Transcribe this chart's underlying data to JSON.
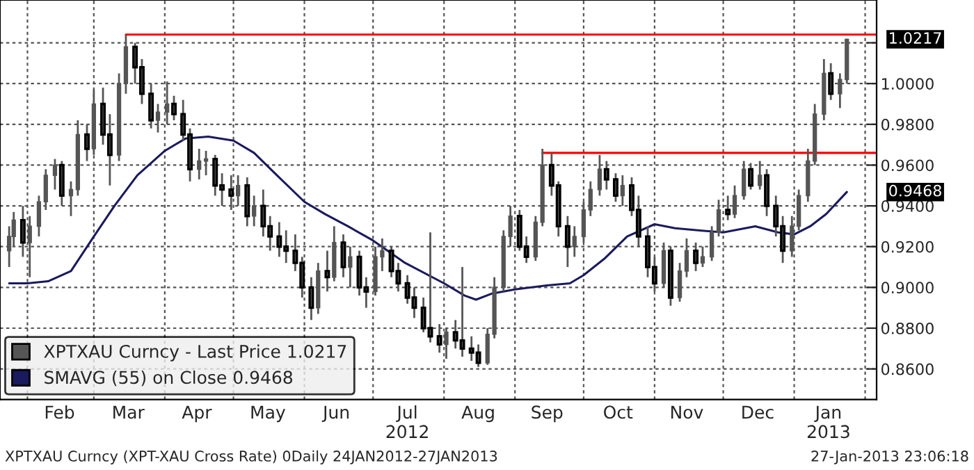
{
  "chart_data": {
    "type": "candlestick",
    "xlim": [
      "2012-01-20",
      "2013-02-06"
    ],
    "ylim": [
      0.845,
      1.041
    ],
    "yticks": [
      {
        "value": 0.86,
        "label": "0.8600"
      },
      {
        "value": 0.88,
        "label": "0.8800"
      },
      {
        "value": 0.9,
        "label": "0.9000"
      },
      {
        "value": 0.92,
        "label": "0.9200"
      },
      {
        "value": 0.94,
        "label": "0.9400"
      },
      {
        "value": 0.96,
        "label": "0.9600"
      },
      {
        "value": 0.98,
        "label": "0.9800"
      },
      {
        "value": 1.0,
        "label": "1.0000"
      },
      {
        "value": 1.02,
        "label": null
      }
    ],
    "xticks": [
      {
        "value": "2012-02-01",
        "label": null
      },
      {
        "value": "2012-03-01",
        "label": null
      },
      {
        "value": "2012-04-01",
        "label": null
      },
      {
        "value": "2012-05-01",
        "label": null
      },
      {
        "value": "2012-06-01",
        "label": null
      },
      {
        "value": "2012-07-01",
        "label": null
      },
      {
        "value": "2012-08-01",
        "label": null
      },
      {
        "value": "2012-09-01",
        "label": null
      },
      {
        "value": "2012-10-01",
        "label": null
      },
      {
        "value": "2012-11-01",
        "label": null
      },
      {
        "value": "2012-12-01",
        "label": null
      },
      {
        "value": "2013-01-01",
        "label": null
      },
      {
        "value": "2013-02-01",
        "label": null
      },
      {
        "value": "2012-02-15",
        "label": "Feb"
      },
      {
        "value": "2012-03-16",
        "label": "Mar"
      },
      {
        "value": "2012-04-15",
        "label": "Apr"
      },
      {
        "value": "2012-05-16",
        "label": "May"
      },
      {
        "value": "2012-06-15",
        "label": "Jun"
      },
      {
        "value": "2012-07-16",
        "label": "Jul\n2012"
      },
      {
        "value": "2012-08-16",
        "label": "Aug"
      },
      {
        "value": "2012-09-15",
        "label": "Sep"
      },
      {
        "value": "2012-10-16",
        "label": "Oct"
      },
      {
        "value": "2012-11-15",
        "label": "Nov"
      },
      {
        "value": "2012-12-16",
        "label": "Dec"
      },
      {
        "value": "2013-01-16",
        "label": "Jan\n2013"
      }
    ],
    "grid": true,
    "legend": "bottom left",
    "series": [
      {
        "name": "XPTXAU Curncy - Last Price 1.0217",
        "color": "#555555",
        "x": [
          "2012-01-24",
          "2012-01-26",
          "2012-01-30",
          "2012-02-02",
          "2012-02-06",
          "2012-02-09",
          "2012-02-13",
          "2012-02-16",
          "2012-02-20",
          "2012-02-23",
          "2012-02-27",
          "2012-03-01",
          "2012-03-05",
          "2012-03-08",
          "2012-03-12",
          "2012-03-15",
          "2012-03-19",
          "2012-03-22",
          "2012-03-26",
          "2012-03-29",
          "2012-04-02",
          "2012-04-05",
          "2012-04-09",
          "2012-04-12",
          "2012-04-16",
          "2012-04-19",
          "2012-04-23",
          "2012-04-26",
          "2012-04-30",
          "2012-05-03",
          "2012-05-07",
          "2012-05-10",
          "2012-05-14",
          "2012-05-17",
          "2012-05-21",
          "2012-05-24",
          "2012-05-28",
          "2012-05-31",
          "2012-06-04",
          "2012-06-07",
          "2012-06-11",
          "2012-06-14",
          "2012-06-18",
          "2012-06-21",
          "2012-06-25",
          "2012-06-28",
          "2012-07-02",
          "2012-07-05",
          "2012-07-09",
          "2012-07-12",
          "2012-07-16",
          "2012-07-19",
          "2012-07-23",
          "2012-07-26",
          "2012-07-30",
          "2012-08-02",
          "2012-08-06",
          "2012-08-09",
          "2012-08-13",
          "2012-08-16",
          "2012-08-20",
          "2012-08-23",
          "2012-08-27",
          "2012-08-30",
          "2012-09-03",
          "2012-09-06",
          "2012-09-10",
          "2012-09-13",
          "2012-09-17",
          "2012-09-20",
          "2012-09-24",
          "2012-09-27",
          "2012-10-01",
          "2012-10-04",
          "2012-10-08",
          "2012-10-11",
          "2012-10-15",
          "2012-10-18",
          "2012-10-22",
          "2012-10-25",
          "2012-10-29",
          "2012-11-01",
          "2012-11-05",
          "2012-11-08",
          "2012-11-12",
          "2012-11-15",
          "2012-11-19",
          "2012-11-22",
          "2012-11-26",
          "2012-11-29",
          "2012-12-03",
          "2012-12-06",
          "2012-12-10",
          "2012-12-13",
          "2012-12-17",
          "2012-12-20",
          "2012-12-24",
          "2012-12-27",
          "2012-12-31",
          "2013-01-03",
          "2013-01-07",
          "2013-01-10",
          "2013-01-14",
          "2013-01-17",
          "2013-01-21",
          "2013-01-24"
        ],
        "ohlc": [
          [
            0.918,
            0.93,
            0.91,
            0.925
          ],
          [
            0.925,
            0.937,
            0.92,
            0.933
          ],
          [
            0.933,
            0.94,
            0.915,
            0.922
          ],
          [
            0.922,
            0.935,
            0.905,
            0.93
          ],
          [
            0.93,
            0.945,
            0.925,
            0.942
          ],
          [
            0.942,
            0.958,
            0.938,
            0.955
          ],
          [
            0.955,
            0.963,
            0.948,
            0.96
          ],
          [
            0.96,
            0.962,
            0.94,
            0.945
          ],
          [
            0.945,
            0.952,
            0.935,
            0.948
          ],
          [
            0.948,
            0.982,
            0.945,
            0.975
          ],
          [
            0.975,
            0.98,
            0.962,
            0.968
          ],
          [
            0.968,
            0.997,
            0.965,
            0.99
          ],
          [
            0.99,
            0.998,
            0.97,
            0.975
          ],
          [
            0.975,
            0.985,
            0.95,
            0.965
          ],
          [
            0.965,
            1.005,
            0.962,
            1.0
          ],
          [
            1.0,
            1.024,
            0.995,
            1.018
          ],
          [
            1.018,
            1.02,
            1.0,
            1.008
          ],
          [
            1.008,
            1.012,
            0.99,
            0.995
          ],
          [
            0.995,
            1.0,
            0.978,
            0.982
          ],
          [
            0.982,
            0.99,
            0.976,
            0.986
          ],
          [
            0.986,
            1.001,
            0.98,
            0.99
          ],
          [
            0.99,
            0.994,
            0.982,
            0.985
          ],
          [
            0.985,
            0.992,
            0.972,
            0.975
          ],
          [
            0.975,
            0.978,
            0.952,
            0.958
          ],
          [
            0.958,
            0.968,
            0.953,
            0.962
          ],
          [
            0.962,
            0.967,
            0.955,
            0.963
          ],
          [
            0.963,
            0.965,
            0.945,
            0.95
          ],
          [
            0.95,
            0.956,
            0.94,
            0.948
          ],
          [
            0.948,
            0.955,
            0.938,
            0.945
          ],
          [
            0.945,
            0.955,
            0.94,
            0.95
          ],
          [
            0.95,
            0.954,
            0.93,
            0.935
          ],
          [
            0.935,
            0.945,
            0.93,
            0.94
          ],
          [
            0.94,
            0.948,
            0.925,
            0.93
          ],
          [
            0.93,
            0.935,
            0.918,
            0.925
          ],
          [
            0.925,
            0.932,
            0.915,
            0.92
          ],
          [
            0.92,
            0.928,
            0.912,
            0.918
          ],
          [
            0.918,
            0.926,
            0.908,
            0.912
          ],
          [
            0.912,
            0.915,
            0.895,
            0.9
          ],
          [
            0.9,
            0.905,
            0.884,
            0.89
          ],
          [
            0.89,
            0.912,
            0.887,
            0.908
          ],
          [
            0.908,
            0.918,
            0.898,
            0.905
          ],
          [
            0.905,
            0.93,
            0.903,
            0.922
          ],
          [
            0.922,
            0.926,
            0.905,
            0.91
          ],
          [
            0.91,
            0.92,
            0.9,
            0.915
          ],
          [
            0.915,
            0.918,
            0.896,
            0.9
          ],
          [
            0.9,
            0.905,
            0.89,
            0.898
          ],
          [
            0.898,
            0.92,
            0.896,
            0.915
          ],
          [
            0.915,
            0.924,
            0.908,
            0.918
          ],
          [
            0.918,
            0.92,
            0.905,
            0.908
          ],
          [
            0.908,
            0.912,
            0.898,
            0.902
          ],
          [
            0.902,
            0.906,
            0.892,
            0.895
          ],
          [
            0.895,
            0.9,
            0.885,
            0.89
          ],
          [
            0.89,
            0.895,
            0.878,
            0.88
          ],
          [
            0.88,
            0.927,
            0.873,
            0.876
          ],
          [
            0.876,
            0.882,
            0.868,
            0.872
          ],
          [
            0.872,
            0.88,
            0.865,
            0.878
          ],
          [
            0.878,
            0.884,
            0.87,
            0.874
          ],
          [
            0.874,
            0.91,
            0.866,
            0.87
          ],
          [
            0.87,
            0.876,
            0.864,
            0.868
          ],
          [
            0.868,
            0.872,
            0.861,
            0.863
          ],
          [
            0.863,
            0.88,
            0.862,
            0.877
          ],
          [
            0.877,
            0.905,
            0.875,
            0.9
          ],
          [
            0.9,
            0.928,
            0.898,
            0.925
          ],
          [
            0.925,
            0.94,
            0.92,
            0.935
          ],
          [
            0.935,
            0.938,
            0.918,
            0.92
          ],
          [
            0.92,
            0.925,
            0.912,
            0.915
          ],
          [
            0.915,
            0.935,
            0.913,
            0.932
          ],
          [
            0.932,
            0.968,
            0.93,
            0.96
          ],
          [
            0.96,
            0.966,
            0.945,
            0.95
          ],
          [
            0.95,
            0.952,
            0.925,
            0.93
          ],
          [
            0.93,
            0.935,
            0.91,
            0.92
          ],
          [
            0.92,
            0.93,
            0.915,
            0.925
          ],
          [
            0.925,
            0.942,
            0.922,
            0.938
          ],
          [
            0.938,
            0.952,
            0.935,
            0.948
          ],
          [
            0.948,
            0.965,
            0.945,
            0.958
          ],
          [
            0.958,
            0.962,
            0.948,
            0.953
          ],
          [
            0.953,
            0.956,
            0.942,
            0.945
          ],
          [
            0.945,
            0.955,
            0.94,
            0.95
          ],
          [
            0.95,
            0.954,
            0.935,
            0.938
          ],
          [
            0.938,
            0.945,
            0.92,
            0.925
          ],
          [
            0.925,
            0.93,
            0.905,
            0.91
          ],
          [
            0.91,
            0.915,
            0.898,
            0.902
          ],
          [
            0.902,
            0.922,
            0.9,
            0.918
          ],
          [
            0.918,
            0.92,
            0.891,
            0.895
          ],
          [
            0.895,
            0.912,
            0.893,
            0.908
          ],
          [
            0.908,
            0.924,
            0.905,
            0.918
          ],
          [
            0.918,
            0.922,
            0.908,
            0.912
          ],
          [
            0.912,
            0.92,
            0.91,
            0.915
          ],
          [
            0.915,
            0.93,
            0.913,
            0.927
          ],
          [
            0.927,
            0.943,
            0.925,
            0.938
          ],
          [
            0.938,
            0.945,
            0.933,
            0.936
          ],
          [
            0.936,
            0.95,
            0.934,
            0.945
          ],
          [
            0.945,
            0.962,
            0.943,
            0.958
          ],
          [
            0.958,
            0.961,
            0.948,
            0.95
          ],
          [
            0.95,
            0.962,
            0.948,
            0.955
          ],
          [
            0.955,
            0.958,
            0.935,
            0.94
          ],
          [
            0.94,
            0.945,
            0.925,
            0.93
          ],
          [
            0.93,
            0.935,
            0.912,
            0.918
          ],
          [
            0.918,
            0.935,
            0.915,
            0.93
          ],
          [
            0.93,
            0.948,
            0.928,
            0.945
          ],
          [
            0.945,
            0.968,
            0.942,
            0.962
          ],
          [
            0.962,
            0.99,
            0.96,
            0.985
          ],
          [
            0.985,
            1.012,
            0.982,
            1.005
          ],
          [
            1.005,
            1.01,
            0.992,
            0.995
          ],
          [
            0.995,
            1.005,
            0.988,
            1.002
          ],
          [
            1.002,
            1.022,
            1.0,
            1.0217
          ]
        ]
      },
      {
        "name": "SMAVG (55) on Close 0.9468",
        "type": "line",
        "color": "#1a1a5e",
        "x": [
          "2012-01-24",
          "2012-02-01",
          "2012-02-10",
          "2012-02-20",
          "2012-03-01",
          "2012-03-10",
          "2012-03-20",
          "2012-04-01",
          "2012-04-10",
          "2012-04-20",
          "2012-05-01",
          "2012-05-10",
          "2012-05-20",
          "2012-06-01",
          "2012-06-10",
          "2012-06-20",
          "2012-07-01",
          "2012-07-15",
          "2012-08-01",
          "2012-08-10",
          "2012-08-15",
          "2012-08-22",
          "2012-09-01",
          "2012-09-15",
          "2012-09-25",
          "2012-10-01",
          "2012-10-10",
          "2012-10-20",
          "2012-11-01",
          "2012-11-10",
          "2012-11-20",
          "2012-12-01",
          "2012-12-15",
          "2012-12-25",
          "2013-01-01",
          "2013-01-08",
          "2013-01-15",
          "2013-01-24"
        ],
        "values": [
          0.902,
          0.902,
          0.903,
          0.908,
          0.925,
          0.94,
          0.955,
          0.967,
          0.973,
          0.974,
          0.972,
          0.966,
          0.955,
          0.942,
          0.936,
          0.93,
          0.923,
          0.912,
          0.902,
          0.896,
          0.894,
          0.897,
          0.899,
          0.901,
          0.902,
          0.906,
          0.914,
          0.925,
          0.931,
          0.929,
          0.928,
          0.927,
          0.93,
          0.927,
          0.926,
          0.93,
          0.936,
          0.9468
        ]
      },
      {
        "type": "line",
        "color": "#ff0000",
        "x": [
          "2012-03-15",
          "2013-02-06"
        ],
        "values": [
          1.024,
          1.024
        ]
      },
      {
        "type": "line",
        "color": "#ff0000",
        "x": [
          "2012-09-13",
          "2013-02-06"
        ],
        "values": [
          0.966,
          0.966
        ]
      }
    ],
    "annotations": [
      "1.0217",
      "0.9468",
      "XPTXAU Curncy (XPT-XAU Cross Rate) 0Daily 24JAN2012-27JAN2013",
      "27-Jan-2013 23:06:18"
    ]
  }
}
